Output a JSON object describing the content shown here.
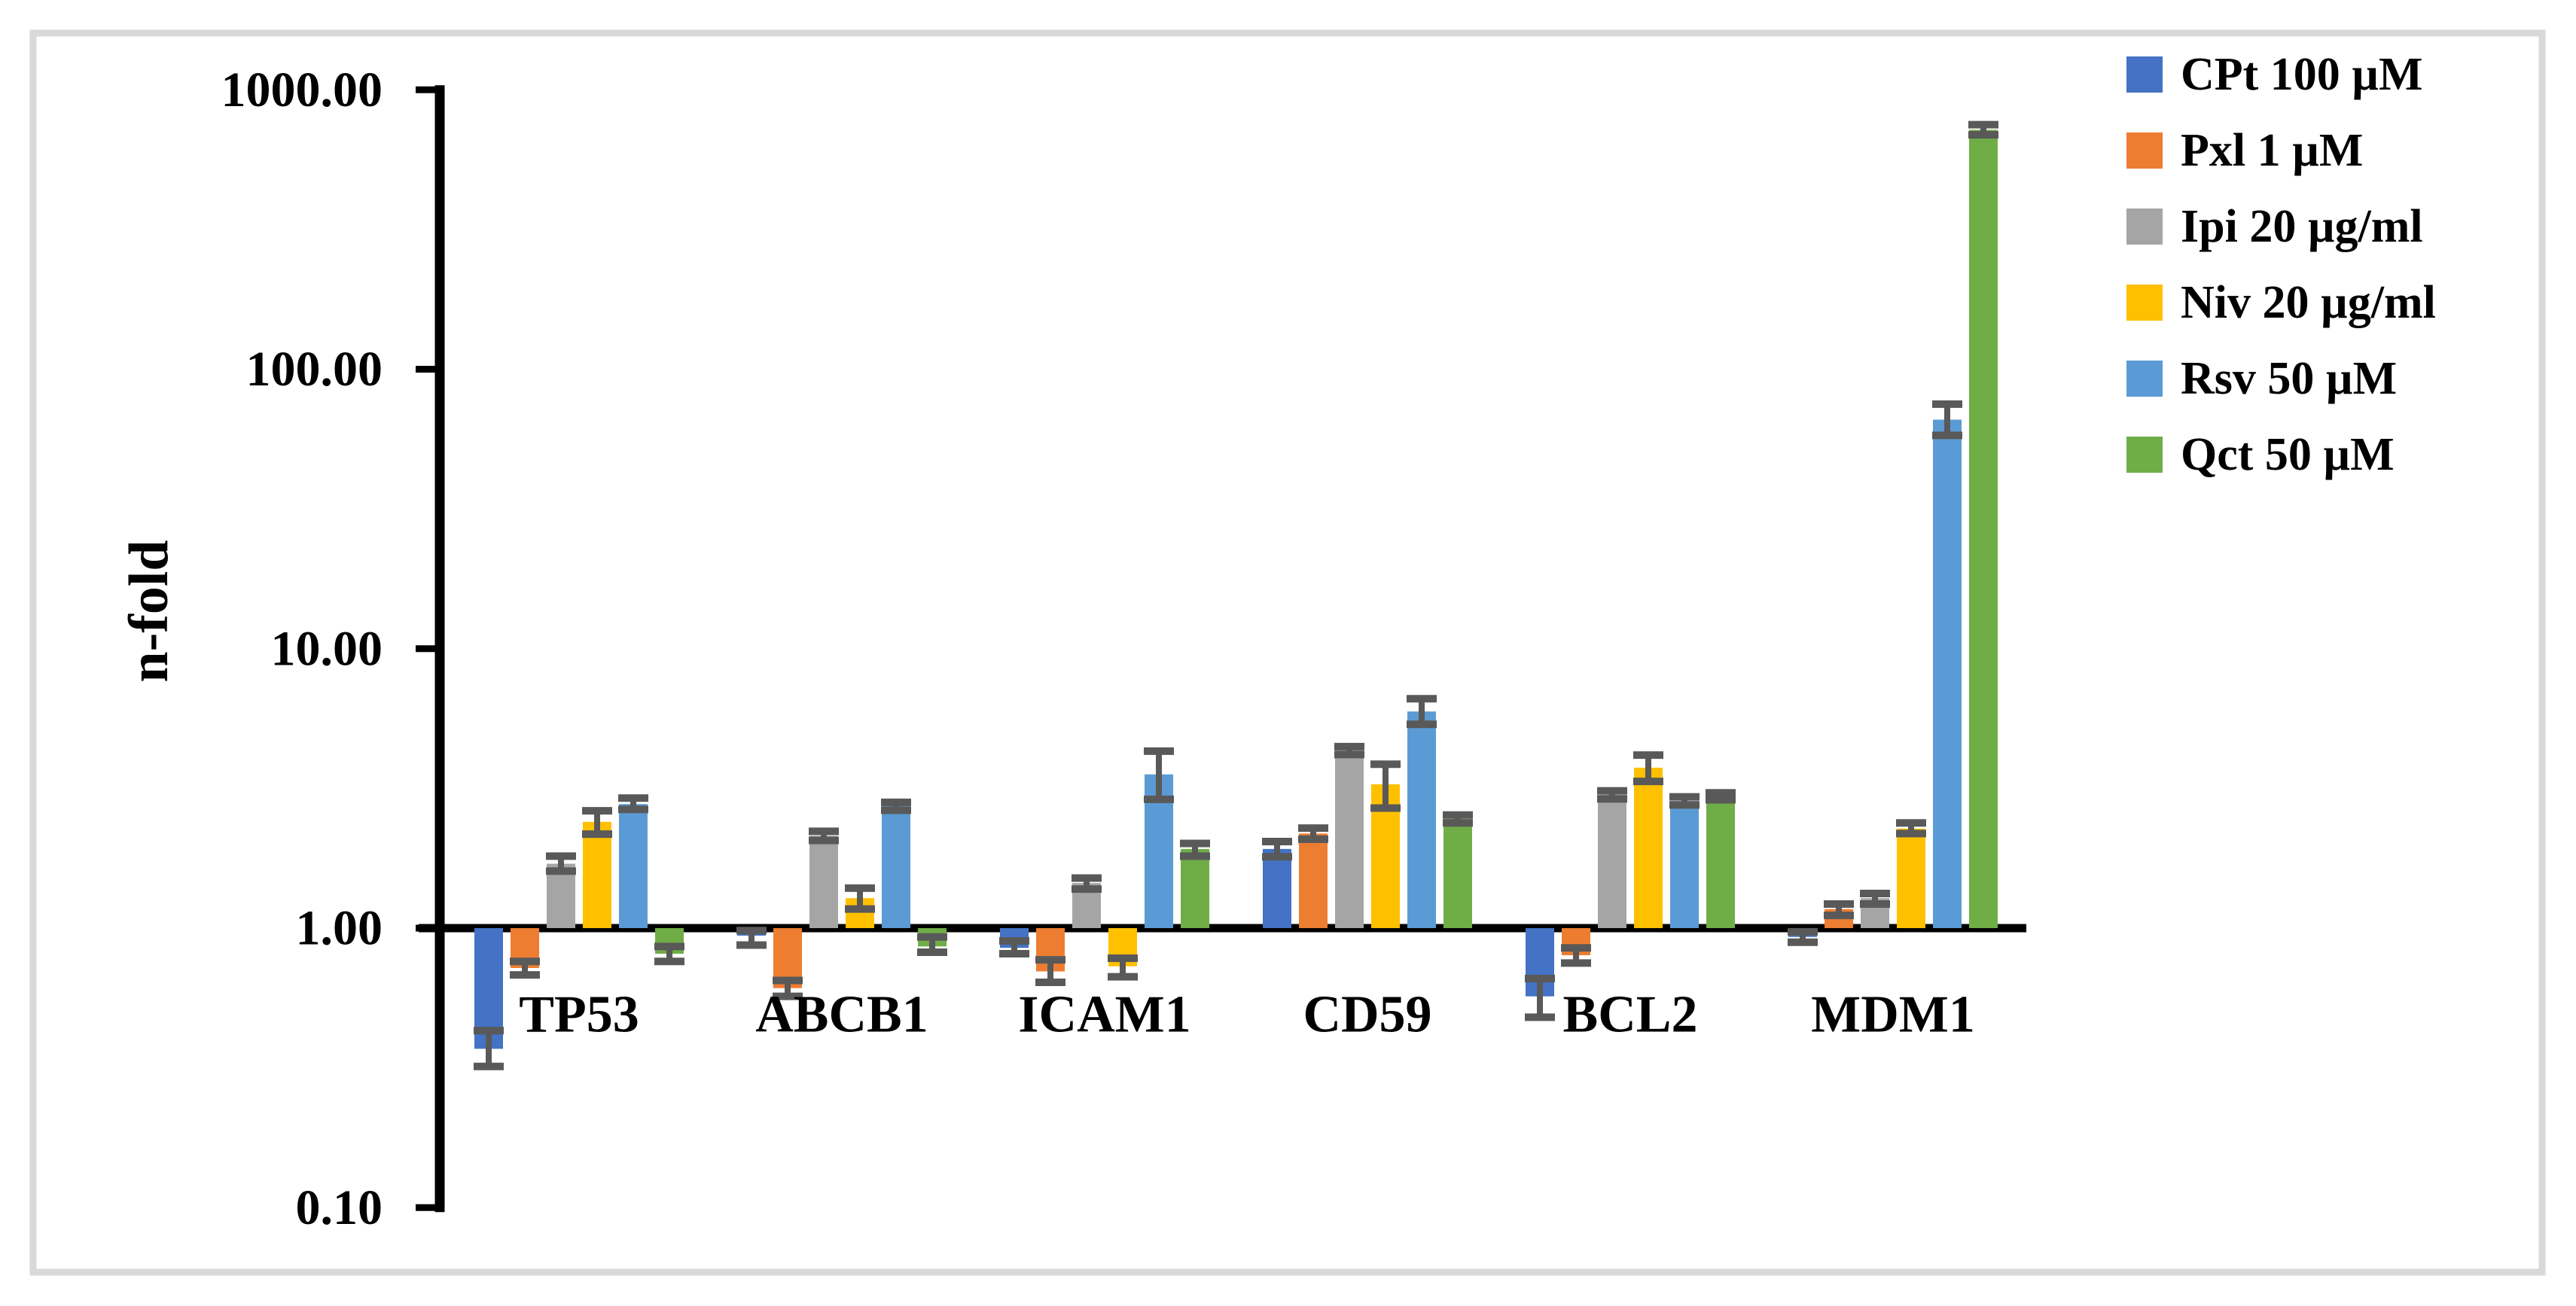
{
  "page": {
    "background_color": "#ffffff",
    "frame_border_color": "#d9d9d9",
    "axis_color": "#000000",
    "error_bar_color": "#595959",
    "text_color": "#000000"
  },
  "chart_data": {
    "type": "bar",
    "title": "",
    "xlabel": "",
    "ylabel": "n-fold",
    "y_scale": "log",
    "ylim": [
      0.1,
      1000
    ],
    "grid": false,
    "legend_position": "right",
    "y_ticks": [
      {
        "value": 1000,
        "label": "1000.00"
      },
      {
        "value": 100,
        "label": "100.00"
      },
      {
        "value": 10,
        "label": "10.00"
      },
      {
        "value": 1,
        "label": "1.00"
      },
      {
        "value": 0.1,
        "label": "0.10"
      }
    ],
    "baseline_value": 1,
    "categories": [
      "TP53",
      "ABCB1",
      "ICAM1",
      "CD59",
      "BCL2",
      "MDM1"
    ],
    "series": [
      {
        "name": "CPt 100 µM",
        "color": "#4472c4",
        "values": [
          0.37,
          0.94,
          0.85,
          1.92,
          0.57,
          0.93
        ],
        "err_lo": [
          0.32,
          0.87,
          0.81,
          1.8,
          0.48,
          0.89
        ],
        "err_hi": [
          0.43,
          0.98,
          0.9,
          2.04,
          0.66,
          0.97
        ]
      },
      {
        "name": "Pxl 1 µM",
        "color": "#ed7d31",
        "values": [
          0.72,
          0.61,
          0.7,
          2.18,
          0.8,
          1.17
        ],
        "err_lo": [
          0.68,
          0.57,
          0.64,
          2.08,
          0.75,
          1.11
        ],
        "err_hi": [
          0.76,
          0.65,
          0.77,
          2.28,
          0.85,
          1.22
        ]
      },
      {
        "name": "Ipi 20 µg/ml",
        "color": "#a5a5a5",
        "values": [
          1.7,
          2.14,
          1.45,
          4.32,
          3.0,
          1.28
        ],
        "err_lo": [
          1.6,
          2.06,
          1.38,
          4.18,
          2.9,
          1.22
        ],
        "err_hi": [
          1.81,
          2.22,
          1.51,
          4.46,
          3.1,
          1.33
        ]
      },
      {
        "name": "Niv 20 µg/ml",
        "color": "#ffc000",
        "values": [
          2.4,
          1.28,
          0.73,
          3.27,
          3.75,
          2.27
        ],
        "err_lo": [
          2.17,
          1.17,
          0.67,
          2.69,
          3.35,
          2.18
        ],
        "err_hi": [
          2.63,
          1.39,
          0.78,
          3.86,
          4.16,
          2.38
        ]
      },
      {
        "name": "Rsv 50 µM",
        "color": "#5b9bd5",
        "values": [
          2.78,
          2.75,
          3.55,
          5.96,
          2.85,
          66
        ],
        "err_lo": [
          2.66,
          2.64,
          2.89,
          5.36,
          2.76,
          58
        ],
        "err_hi": [
          2.92,
          2.82,
          4.3,
          6.62,
          2.95,
          75
        ]
      },
      {
        "name": "Qct 50 µM",
        "color": "#70ad47",
        "values": [
          0.81,
          0.86,
          1.92,
          2.46,
          2.96,
          719
        ],
        "err_lo": [
          0.76,
          0.82,
          1.81,
          2.38,
          2.88,
          690
        ],
        "err_hi": [
          0.86,
          0.93,
          2.01,
          2.54,
          3.05,
          750
        ]
      }
    ]
  }
}
